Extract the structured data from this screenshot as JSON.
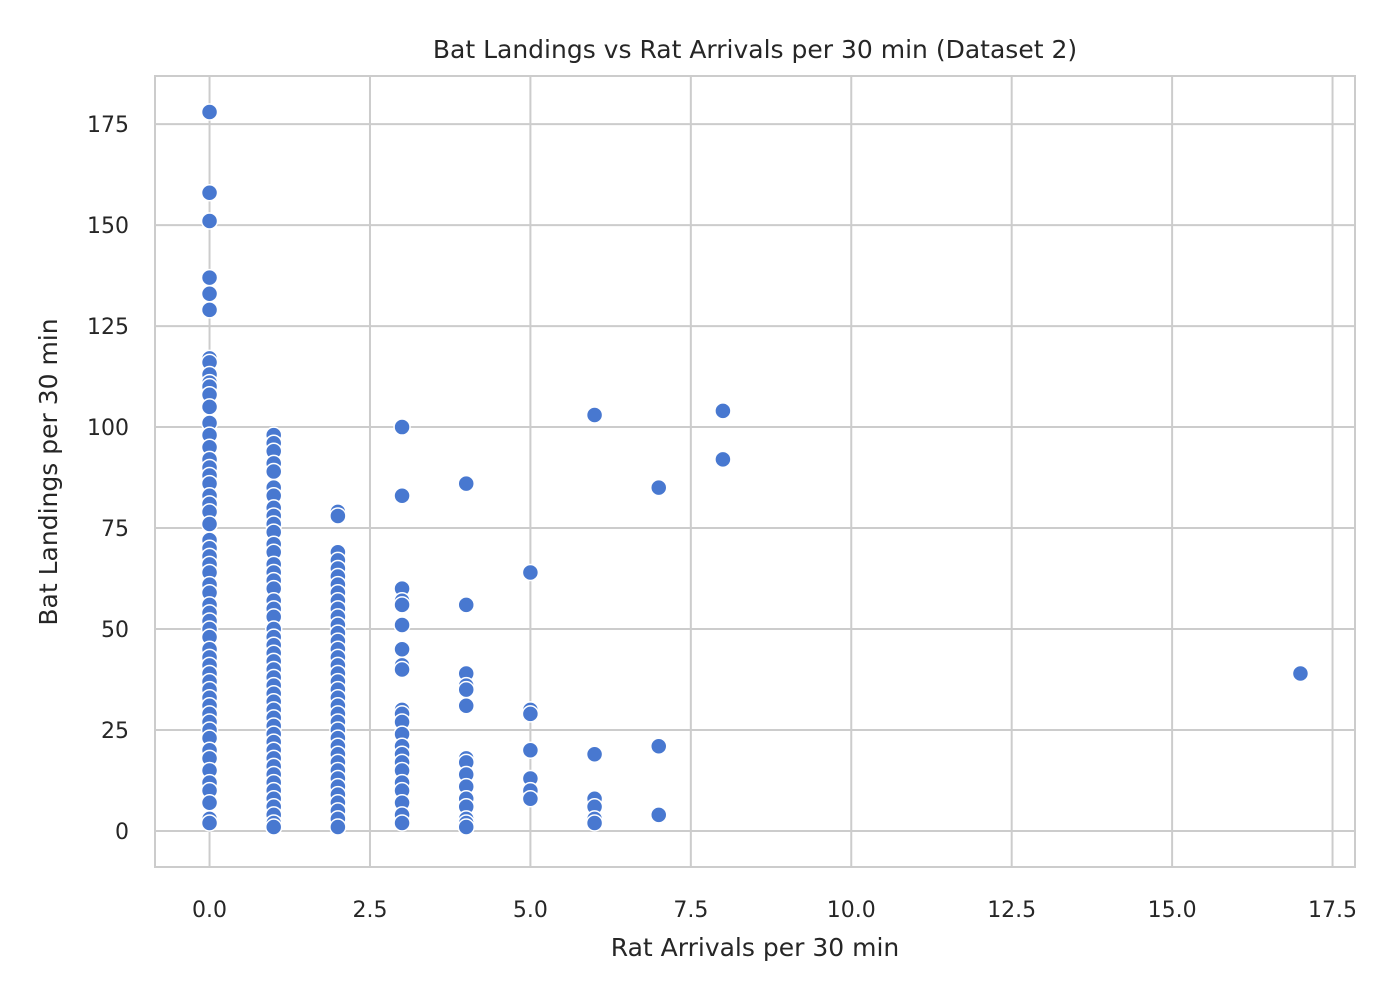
{
  "chart_data": {
    "type": "scatter",
    "title": "Bat Landings vs Rat Arrivals per 30 min (Dataset 2)",
    "xlabel": "Rat Arrivals per 30 min",
    "ylabel": "Bat Landings per 30 min",
    "xlim": [
      -0.85,
      17.85
    ],
    "ylim": [
      -8.9,
      186.9
    ],
    "xticks": [
      0,
      2.5,
      5,
      7.5,
      10,
      12.5,
      15,
      17.5
    ],
    "xtick_labels": [
      "0.0",
      "2.5",
      "5.0",
      "7.5",
      "10.0",
      "12.5",
      "15.0",
      "17.5"
    ],
    "yticks": [
      0,
      25,
      50,
      75,
      100,
      125,
      150,
      175
    ],
    "ytick_labels": [
      "0",
      "25",
      "50",
      "75",
      "100",
      "125",
      "150",
      "175"
    ],
    "grid": true,
    "colors": {
      "point": "#4878d0",
      "grid": "#cccccc",
      "text": "#262626"
    },
    "series": [
      {
        "points": [
          [
            0,
            178
          ],
          [
            0,
            158
          ],
          [
            0,
            151
          ],
          [
            0,
            137
          ],
          [
            0,
            133
          ],
          [
            0,
            129
          ],
          [
            0,
            117
          ],
          [
            0,
            116
          ],
          [
            0,
            113
          ],
          [
            0,
            111
          ],
          [
            0,
            110
          ],
          [
            0,
            108
          ],
          [
            0,
            105
          ],
          [
            0,
            101
          ],
          [
            0,
            98
          ],
          [
            0,
            95
          ],
          [
            0,
            92
          ],
          [
            0,
            90
          ],
          [
            0,
            88
          ],
          [
            0,
            86
          ],
          [
            0,
            83
          ],
          [
            0,
            81
          ],
          [
            0,
            79
          ],
          [
            0,
            76
          ],
          [
            0,
            72
          ],
          [
            0,
            70
          ],
          [
            0,
            68
          ],
          [
            0,
            66
          ],
          [
            0,
            64
          ],
          [
            0,
            61
          ],
          [
            0,
            59
          ],
          [
            0,
            56
          ],
          [
            0,
            54
          ],
          [
            0,
            52
          ],
          [
            0,
            50
          ],
          [
            0,
            48
          ],
          [
            0,
            45
          ],
          [
            0,
            43
          ],
          [
            0,
            41
          ],
          [
            0,
            39
          ],
          [
            0,
            37
          ],
          [
            0,
            35
          ],
          [
            0,
            33
          ],
          [
            0,
            31
          ],
          [
            0,
            29
          ],
          [
            0,
            27
          ],
          [
            0,
            25
          ],
          [
            0,
            23
          ],
          [
            0,
            20
          ],
          [
            0,
            18
          ],
          [
            0,
            15
          ],
          [
            0,
            12
          ],
          [
            0,
            10
          ],
          [
            0,
            7
          ],
          [
            0,
            3
          ],
          [
            0,
            2
          ],
          [
            1,
            98
          ],
          [
            1,
            96
          ],
          [
            1,
            94
          ],
          [
            1,
            91
          ],
          [
            1,
            89
          ],
          [
            1,
            85
          ],
          [
            1,
            83
          ],
          [
            1,
            80
          ],
          [
            1,
            78
          ],
          [
            1,
            76
          ],
          [
            1,
            74
          ],
          [
            1,
            71
          ],
          [
            1,
            69
          ],
          [
            1,
            66
          ],
          [
            1,
            64
          ],
          [
            1,
            62
          ],
          [
            1,
            60
          ],
          [
            1,
            57
          ],
          [
            1,
            55
          ],
          [
            1,
            53
          ],
          [
            1,
            50
          ],
          [
            1,
            48
          ],
          [
            1,
            46
          ],
          [
            1,
            44
          ],
          [
            1,
            42
          ],
          [
            1,
            40
          ],
          [
            1,
            38
          ],
          [
            1,
            36
          ],
          [
            1,
            34
          ],
          [
            1,
            32
          ],
          [
            1,
            30
          ],
          [
            1,
            28
          ],
          [
            1,
            26
          ],
          [
            1,
            24
          ],
          [
            1,
            22
          ],
          [
            1,
            20
          ],
          [
            1,
            18
          ],
          [
            1,
            16
          ],
          [
            1,
            14
          ],
          [
            1,
            12
          ],
          [
            1,
            10
          ],
          [
            1,
            8
          ],
          [
            1,
            6
          ],
          [
            1,
            4
          ],
          [
            1,
            2
          ],
          [
            1,
            1
          ],
          [
            2,
            79
          ],
          [
            2,
            78
          ],
          [
            2,
            69
          ],
          [
            2,
            67
          ],
          [
            2,
            65
          ],
          [
            2,
            63
          ],
          [
            2,
            61
          ],
          [
            2,
            59
          ],
          [
            2,
            57
          ],
          [
            2,
            55
          ],
          [
            2,
            53
          ],
          [
            2,
            51
          ],
          [
            2,
            49
          ],
          [
            2,
            47
          ],
          [
            2,
            45
          ],
          [
            2,
            43
          ],
          [
            2,
            41
          ],
          [
            2,
            39
          ],
          [
            2,
            37
          ],
          [
            2,
            35
          ],
          [
            2,
            33
          ],
          [
            2,
            31
          ],
          [
            2,
            29
          ],
          [
            2,
            27
          ],
          [
            2,
            25
          ],
          [
            2,
            23
          ],
          [
            2,
            21
          ],
          [
            2,
            19
          ],
          [
            2,
            17
          ],
          [
            2,
            15
          ],
          [
            2,
            13
          ],
          [
            2,
            11
          ],
          [
            2,
            9
          ],
          [
            2,
            7
          ],
          [
            2,
            5
          ],
          [
            2,
            3
          ],
          [
            2,
            1
          ],
          [
            3,
            100
          ],
          [
            3,
            83
          ],
          [
            3,
            60
          ],
          [
            3,
            57
          ],
          [
            3,
            56
          ],
          [
            3,
            51
          ],
          [
            3,
            45
          ],
          [
            3,
            41
          ],
          [
            3,
            40
          ],
          [
            3,
            30
          ],
          [
            3,
            29
          ],
          [
            3,
            27
          ],
          [
            3,
            24
          ],
          [
            3,
            21
          ],
          [
            3,
            19
          ],
          [
            3,
            17
          ],
          [
            3,
            15
          ],
          [
            3,
            12
          ],
          [
            3,
            10
          ],
          [
            3,
            7
          ],
          [
            3,
            4
          ],
          [
            3,
            2
          ],
          [
            4,
            86
          ],
          [
            4,
            56
          ],
          [
            4,
            39
          ],
          [
            4,
            36
          ],
          [
            4,
            35
          ],
          [
            4,
            31
          ],
          [
            4,
            18
          ],
          [
            4,
            17
          ],
          [
            4,
            14
          ],
          [
            4,
            11
          ],
          [
            4,
            8
          ],
          [
            4,
            6
          ],
          [
            4,
            3
          ],
          [
            4,
            2
          ],
          [
            4,
            1
          ],
          [
            5,
            64
          ],
          [
            5,
            30
          ],
          [
            5,
            29
          ],
          [
            5,
            20
          ],
          [
            5,
            13
          ],
          [
            5,
            10
          ],
          [
            5,
            8
          ],
          [
            6,
            103
          ],
          [
            6,
            19
          ],
          [
            6,
            8
          ],
          [
            6,
            6
          ],
          [
            6,
            3
          ],
          [
            6,
            2
          ],
          [
            7,
            85
          ],
          [
            7,
            21
          ],
          [
            7,
            4
          ],
          [
            8,
            104
          ],
          [
            8,
            92
          ],
          [
            17,
            39
          ]
        ]
      }
    ]
  }
}
